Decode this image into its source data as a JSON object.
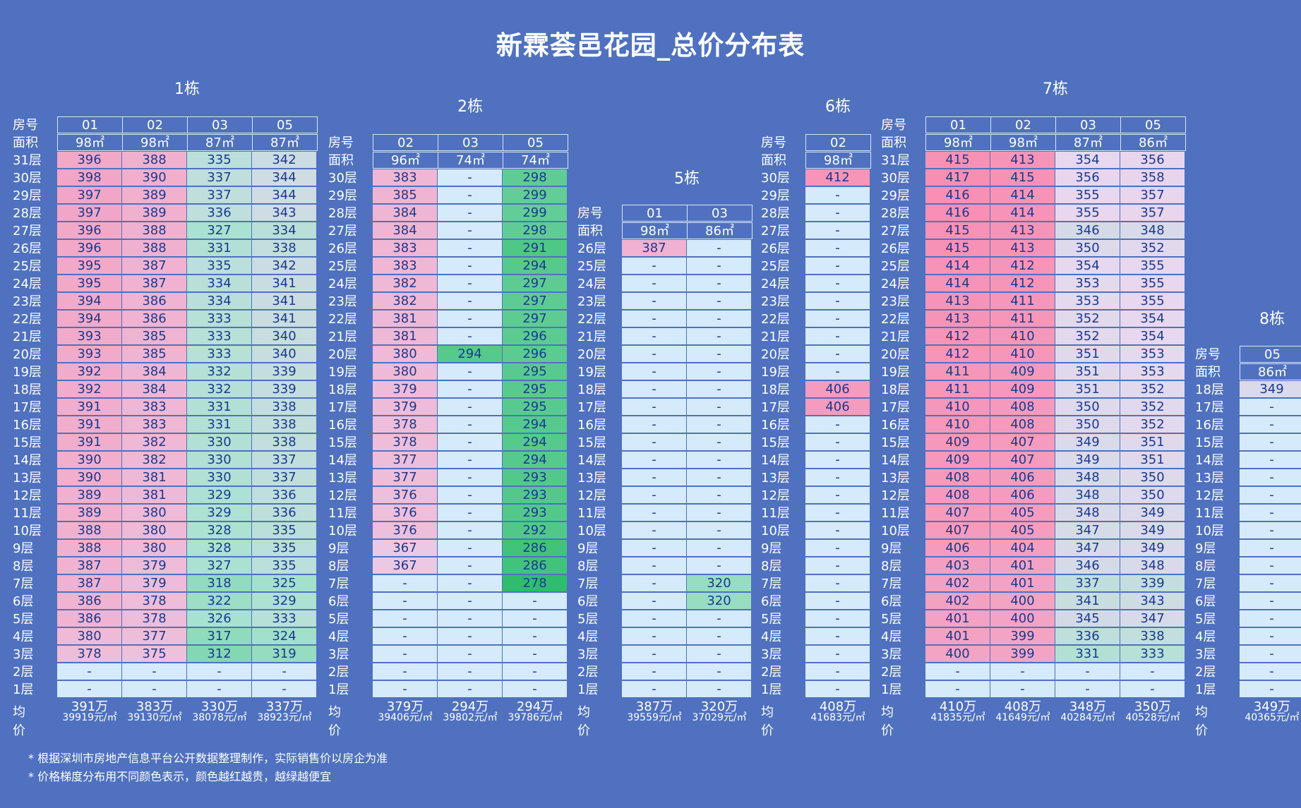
{
  "title": "新霖荟邑花园_总价分布表",
  "labels": {
    "room": "房号",
    "area": "面积",
    "avg": "均价",
    "floor_suffix": "层"
  },
  "notes": [
    "* 根据深圳市房地产信息平台公开数据整理制作，实际销售价以房企为准",
    "* 价格梯度分布用不同颜色表示，颜色越红越贵，越绿越便宜"
  ],
  "colors": {
    "background": "#4f71bf",
    "cheapest": "#2ebd6c",
    "priciest": "#f78fb3",
    "empty": "#d5eafb"
  },
  "chart_data": {
    "type": "table",
    "title": "新霖荟邑花园_总价分布表",
    "unit": "万",
    "buildings": [
      {
        "name": "1栋",
        "top_floor": 31,
        "units": [
          {
            "room": "01",
            "area": "98㎡",
            "avg_total": "391万",
            "avg_unit": "39919元/㎡",
            "prices": [
              null,
              null,
              378,
              380,
              386,
              386,
              387,
              387,
              388,
              388,
              389,
              389,
              390,
              390,
              391,
              391,
              391,
              392,
              392,
              393,
              393,
              394,
              394,
              395,
              395,
              396,
              396,
              397,
              397,
              398,
              396
            ]
          },
          {
            "room": "02",
            "area": "98㎡",
            "avg_total": "383万",
            "avg_unit": "39130元/㎡",
            "prices": [
              null,
              null,
              375,
              377,
              378,
              378,
              379,
              379,
              380,
              380,
              380,
              381,
              381,
              382,
              382,
              383,
              383,
              384,
              384,
              385,
              385,
              386,
              386,
              387,
              387,
              388,
              388,
              389,
              389,
              390,
              388
            ]
          },
          {
            "room": "03",
            "area": "87㎡",
            "avg_total": "330万",
            "avg_unit": "38078元/㎡",
            "prices": [
              null,
              null,
              312,
              317,
              326,
              322,
              318,
              327,
              328,
              328,
              329,
              329,
              330,
              330,
              330,
              331,
              331,
              332,
              332,
              333,
              333,
              333,
              334,
              334,
              335,
              331,
              327,
              336,
              337,
              337,
              335
            ]
          },
          {
            "room": "05",
            "area": "87㎡",
            "avg_total": "337万",
            "avg_unit": "38923元/㎡",
            "prices": [
              null,
              null,
              319,
              324,
              333,
              329,
              325,
              335,
              335,
              335,
              336,
              336,
              337,
              337,
              338,
              338,
              338,
              339,
              339,
              340,
              340,
              341,
              341,
              341,
              342,
              338,
              334,
              343,
              344,
              344,
              342
            ]
          }
        ]
      },
      {
        "name": "2栋",
        "top_floor": 30,
        "units": [
          {
            "room": "02",
            "area": "96㎡",
            "avg_total": "379万",
            "avg_unit": "39406元/㎡",
            "prices": [
              null,
              null,
              null,
              null,
              null,
              null,
              null,
              367,
              367,
              376,
              376,
              376,
              377,
              377,
              378,
              378,
              379,
              379,
              380,
              380,
              381,
              381,
              382,
              382,
              383,
              383,
              384,
              384,
              385,
              383
            ]
          },
          {
            "room": "03",
            "area": "74㎡",
            "avg_total": "294万",
            "avg_unit": "39802元/㎡",
            "prices": [
              null,
              null,
              null,
              null,
              null,
              null,
              null,
              null,
              null,
              null,
              null,
              null,
              null,
              null,
              null,
              null,
              null,
              null,
              null,
              294,
              null,
              null,
              null,
              null,
              null,
              null,
              null,
              null,
              null,
              null
            ]
          },
          {
            "room": "05",
            "area": "74㎡",
            "avg_total": "294万",
            "avg_unit": "39786元/㎡",
            "prices": [
              null,
              null,
              null,
              null,
              null,
              null,
              278,
              286,
              286,
              292,
              293,
              293,
              293,
              294,
              294,
              294,
              295,
              295,
              295,
              296,
              296,
              297,
              297,
              297,
              294,
              291,
              298,
              299,
              299,
              298
            ]
          }
        ]
      },
      {
        "name": "5栋",
        "top_floor": 26,
        "units": [
          {
            "room": "01",
            "area": "98㎡",
            "avg_total": "387万",
            "avg_unit": "39559元/㎡",
            "prices": [
              null,
              null,
              null,
              null,
              null,
              null,
              null,
              null,
              null,
              null,
              null,
              null,
              null,
              null,
              null,
              null,
              null,
              null,
              null,
              null,
              null,
              null,
              null,
              null,
              null,
              387
            ]
          },
          {
            "room": "03",
            "area": "86㎡",
            "avg_total": "320万",
            "avg_unit": "37029元/㎡",
            "prices": [
              null,
              null,
              null,
              null,
              null,
              320,
              320,
              null,
              null,
              null,
              null,
              null,
              null,
              null,
              null,
              null,
              null,
              null,
              null,
              null,
              null,
              null,
              null,
              null,
              null,
              null
            ]
          }
        ]
      },
      {
        "name": "6栋",
        "top_floor": 30,
        "units": [
          {
            "room": "02",
            "area": "98㎡",
            "avg_total": "408万",
            "avg_unit": "41683元/㎡",
            "prices": [
              null,
              null,
              null,
              null,
              null,
              null,
              null,
              null,
              null,
              null,
              null,
              null,
              null,
              null,
              null,
              null,
              406,
              406,
              null,
              null,
              null,
              null,
              null,
              null,
              null,
              null,
              null,
              null,
              null,
              412
            ]
          }
        ]
      },
      {
        "name": "7栋",
        "top_floor": 31,
        "units": [
          {
            "room": "01",
            "area": "98㎡",
            "avg_total": "410万",
            "avg_unit": "41835元/㎡",
            "prices": [
              null,
              null,
              400,
              401,
              401,
              402,
              402,
              403,
              406,
              407,
              407,
              408,
              408,
              409,
              409,
              410,
              410,
              411,
              411,
              412,
              412,
              413,
              413,
              414,
              414,
              415,
              415,
              416,
              416,
              417,
              415
            ]
          },
          {
            "room": "02",
            "area": "98㎡",
            "avg_total": "408万",
            "avg_unit": "41649元/㎡",
            "prices": [
              null,
              null,
              399,
              399,
              400,
              400,
              401,
              401,
              404,
              405,
              405,
              406,
              406,
              407,
              407,
              408,
              408,
              409,
              409,
              410,
              410,
              411,
              411,
              412,
              412,
              413,
              413,
              414,
              414,
              415,
              413
            ]
          },
          {
            "room": "03",
            "area": "87㎡",
            "avg_total": "348万",
            "avg_unit": "40284元/㎡",
            "prices": [
              null,
              null,
              331,
              336,
              345,
              341,
              337,
              346,
              347,
              347,
              348,
              348,
              348,
              349,
              349,
              350,
              350,
              351,
              351,
              351,
              352,
              352,
              353,
              353,
              354,
              350,
              346,
              355,
              355,
              356,
              354
            ]
          },
          {
            "room": "05",
            "area": "86㎡",
            "avg_total": "350万",
            "avg_unit": "40528元/㎡",
            "prices": [
              null,
              null,
              333,
              338,
              347,
              343,
              339,
              348,
              349,
              349,
              349,
              350,
              350,
              351,
              351,
              352,
              352,
              352,
              353,
              353,
              354,
              354,
              355,
              355,
              355,
              352,
              348,
              357,
              357,
              358,
              356
            ]
          }
        ]
      },
      {
        "name": "8栋",
        "top_floor": 18,
        "units": [
          {
            "room": "05",
            "area": "86㎡",
            "avg_total": "349万",
            "avg_unit": "40365元/㎡",
            "prices": [
              null,
              null,
              null,
              null,
              null,
              null,
              null,
              null,
              null,
              null,
              null,
              null,
              null,
              null,
              null,
              null,
              null,
              349
            ]
          }
        ]
      }
    ]
  }
}
